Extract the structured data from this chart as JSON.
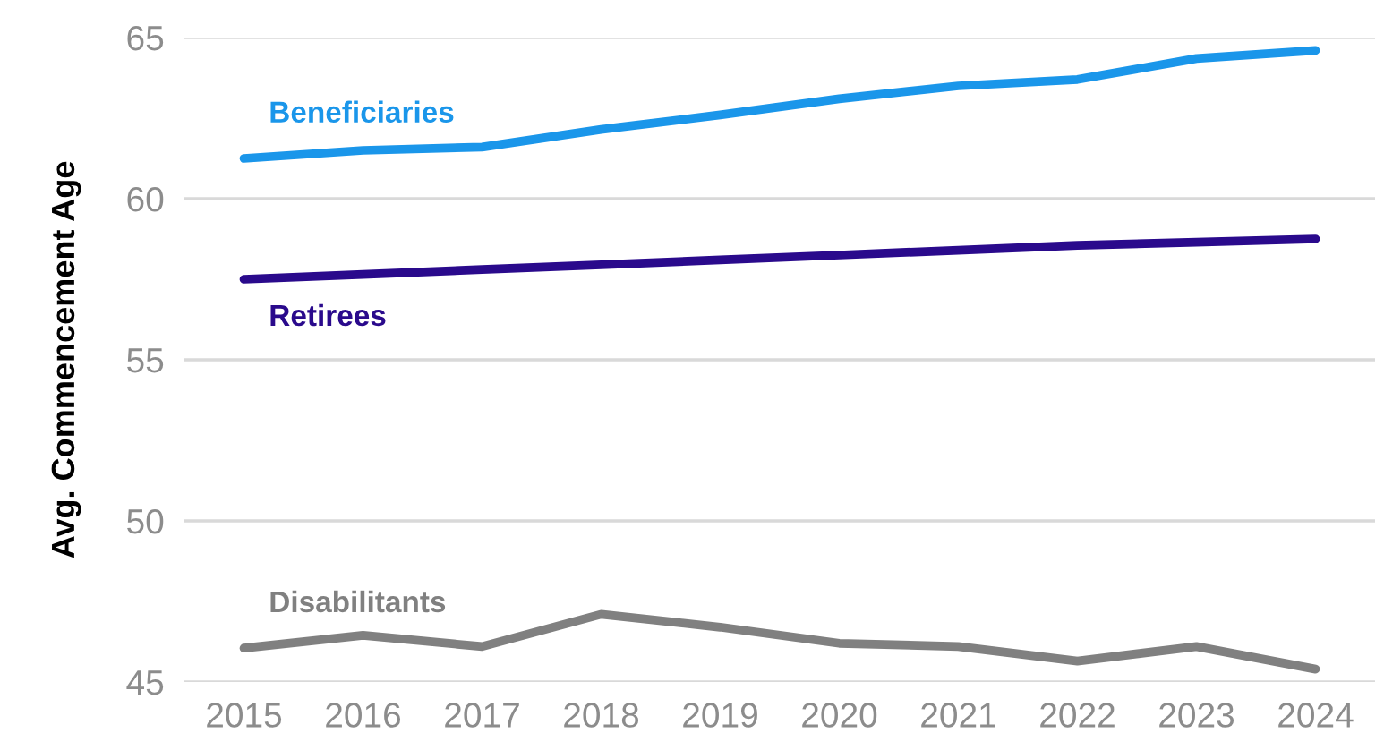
{
  "chart_data": {
    "type": "line",
    "ylabel": "Avg. Commencement Age",
    "categories": [
      "2015",
      "2016",
      "2017",
      "2018",
      "2019",
      "2020",
      "2021",
      "2022",
      "2023",
      "2024"
    ],
    "series": [
      {
        "name": "Beneficiaries",
        "color": "#1a96ea",
        "values": [
          61.25,
          61.5,
          61.6,
          62.15,
          62.6,
          63.1,
          63.5,
          63.7,
          64.35,
          64.6
        ]
      },
      {
        "name": "Retirees",
        "color": "#2a0a8c",
        "values": [
          57.5,
          57.65,
          57.8,
          57.95,
          58.1,
          58.25,
          58.4,
          58.55,
          58.65,
          58.75
        ]
      },
      {
        "name": "Disabilitants",
        "color": "#808080",
        "values": [
          46.05,
          46.45,
          46.1,
          47.1,
          46.7,
          46.2,
          46.1,
          45.65,
          46.1,
          45.4
        ]
      }
    ],
    "ylim": [
      45,
      65
    ],
    "yticks": [
      45,
      50,
      55,
      60,
      65
    ],
    "grid": "y",
    "legend": false,
    "marker": "none",
    "line_style": "solid"
  }
}
